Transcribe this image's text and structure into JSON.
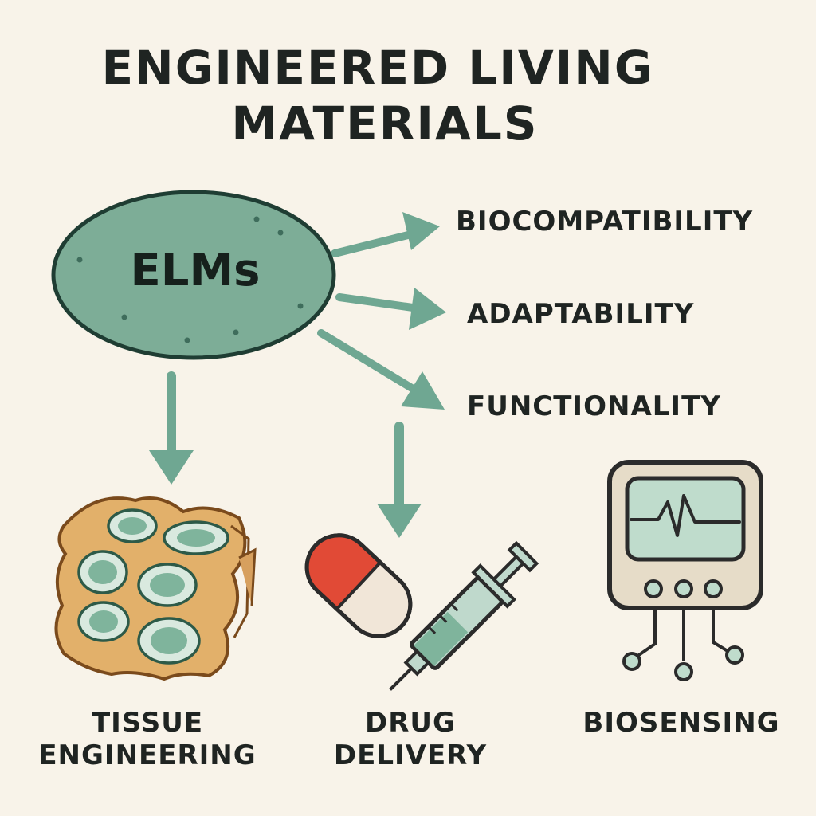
{
  "title": {
    "line1": "ENGINEERED LIVING",
    "line2": "MATERIALS"
  },
  "center": {
    "label": "ELMs"
  },
  "properties": [
    "BIOCOMPATIBILITY",
    "ADAPTABILITY",
    "FUNCTIONALITY"
  ],
  "applications": [
    {
      "line1": "TISSUE",
      "line2": "ENGINEERING"
    },
    {
      "line1": "DRUG",
      "line2": "DELIVERY"
    },
    {
      "line1": "BIOSENSING"
    }
  ],
  "colors": {
    "background": "#f8f3e9",
    "accent_green": "#6fa792",
    "dark_outline": "#1f3d33",
    "text": "#1f2422",
    "pill_red": "#e14a36",
    "scaffold_tan": "#e2b06a"
  },
  "icons": [
    "tissue-scaffold-icon",
    "capsule-icon",
    "syringe-icon",
    "monitor-icon"
  ]
}
